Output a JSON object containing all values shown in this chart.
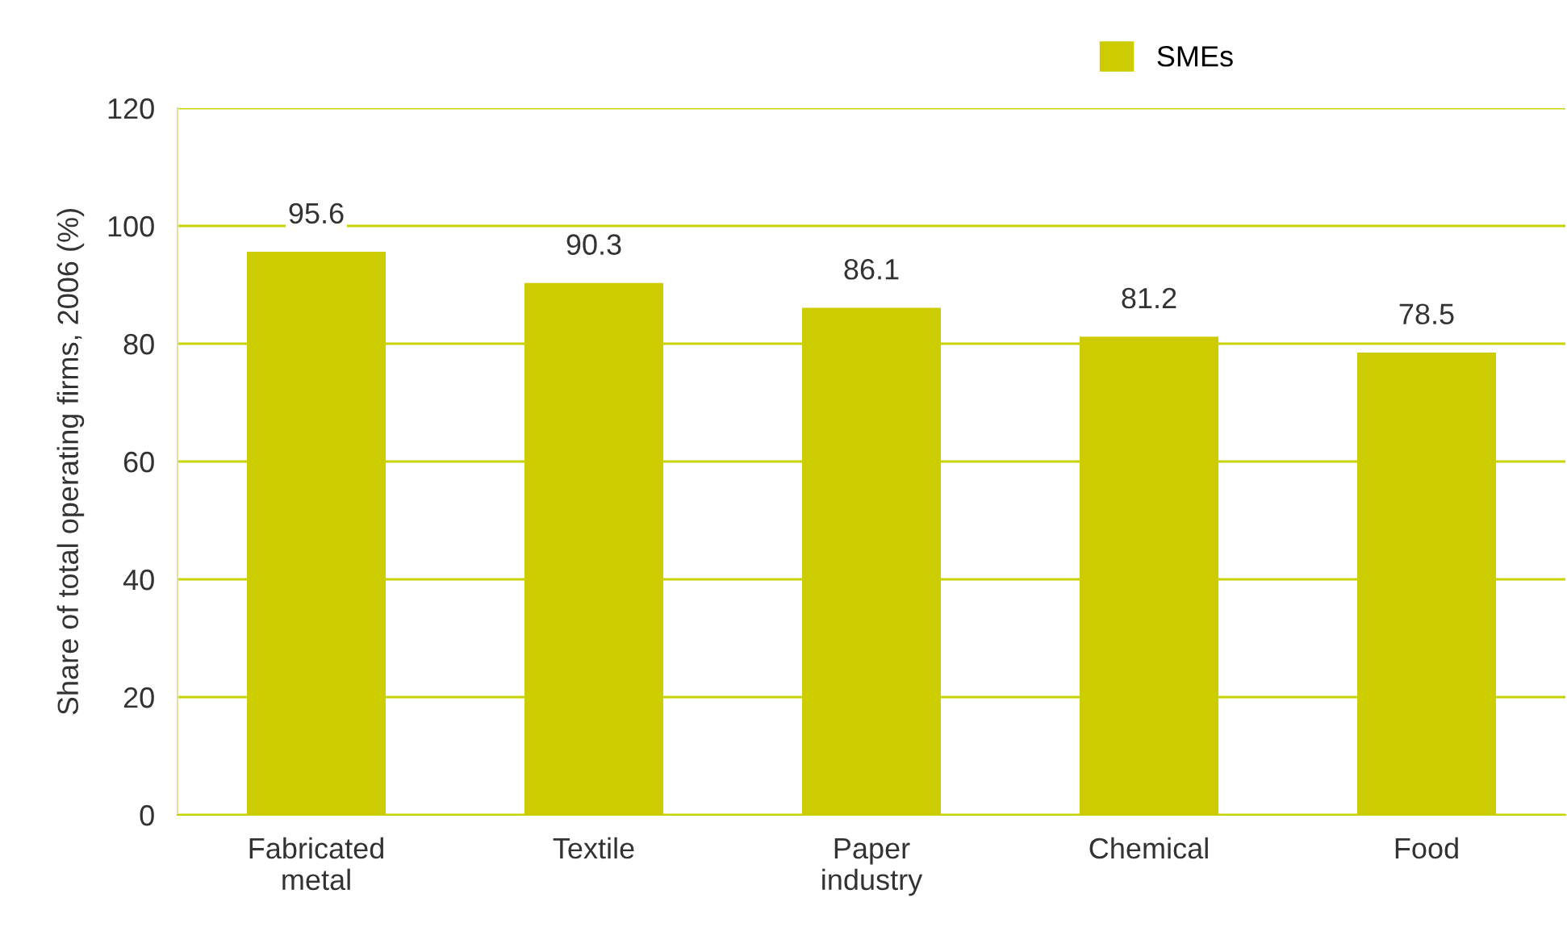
{
  "chart_data": {
    "type": "bar",
    "ylabel": "Share of total operating firms, 2006 (%)",
    "categories": [
      "Fabricated\nmetal",
      "Textile",
      "Paper\nindustry",
      "Chemical",
      "Food"
    ],
    "series": [
      {
        "name": "SMEs",
        "color": "#cccc00",
        "values": [
          95.6,
          90.3,
          86.1,
          81.2,
          78.5
        ]
      }
    ],
    "ylim": [
      0,
      120
    ],
    "yticks": [
      0,
      20,
      40,
      60,
      80,
      100,
      120
    ],
    "grid": "y",
    "legend": "top right",
    "data_labels": true
  }
}
